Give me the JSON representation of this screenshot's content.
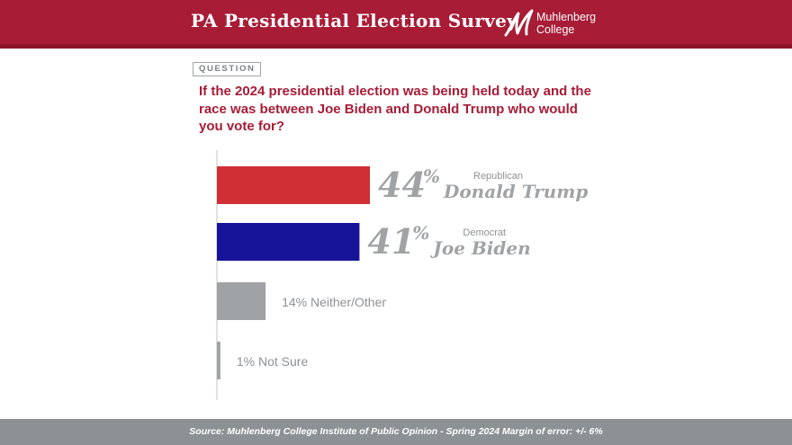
{
  "header": {
    "title": "PA Presidential Election Survey",
    "logo": {
      "icon": "muhlenberg-m-logo",
      "line1": "Muhlenberg",
      "line2": "College"
    }
  },
  "question": {
    "badge": "QUESTION",
    "text": "If the 2024 presidential election was being held today and the race was between Joe Biden and Donald Trump who would you vote for?"
  },
  "chart_data": {
    "type": "bar",
    "orientation": "horizontal",
    "title": "If the 2024 presidential election was being held today and the race was between Joe Biden and Donald Trump who would you vote for?",
    "xlabel": "",
    "ylabel": "",
    "categories": [
      "Donald Trump",
      "Joe Biden",
      "Neither/Other",
      "Not Sure"
    ],
    "values": [
      44,
      41,
      14,
      1
    ],
    "unit": "%",
    "xlim": [
      0,
      100
    ],
    "bars": [
      {
        "value": 44,
        "percent_label": "44",
        "percent_sign": "%",
        "party": "Republican",
        "name": "Donald Trump",
        "color": "#d12f36",
        "text_color": "#a0a3a6"
      },
      {
        "value": 41,
        "percent_label": "41",
        "percent_sign": "%",
        "party": "Democrat",
        "name": "Joe Biden",
        "color": "#18149a",
        "text_color": "#a0a3a6"
      },
      {
        "value": 14,
        "label": "14% Neither/Other",
        "color": "#a0a3a6",
        "text_color": "#8e9194"
      },
      {
        "value": 1,
        "label": "1% Not Sure",
        "color": "#a0a3a6",
        "text_color": "#8e9194"
      }
    ]
  },
  "footer": {
    "source": "Source: Muhlenberg College Institute of Public Opinion - Spring 2024 Margin of error: +/- 6%"
  },
  "colors": {
    "brand": "#a81c36",
    "footer": "#8e9194",
    "axis": "#c4c6c8"
  }
}
